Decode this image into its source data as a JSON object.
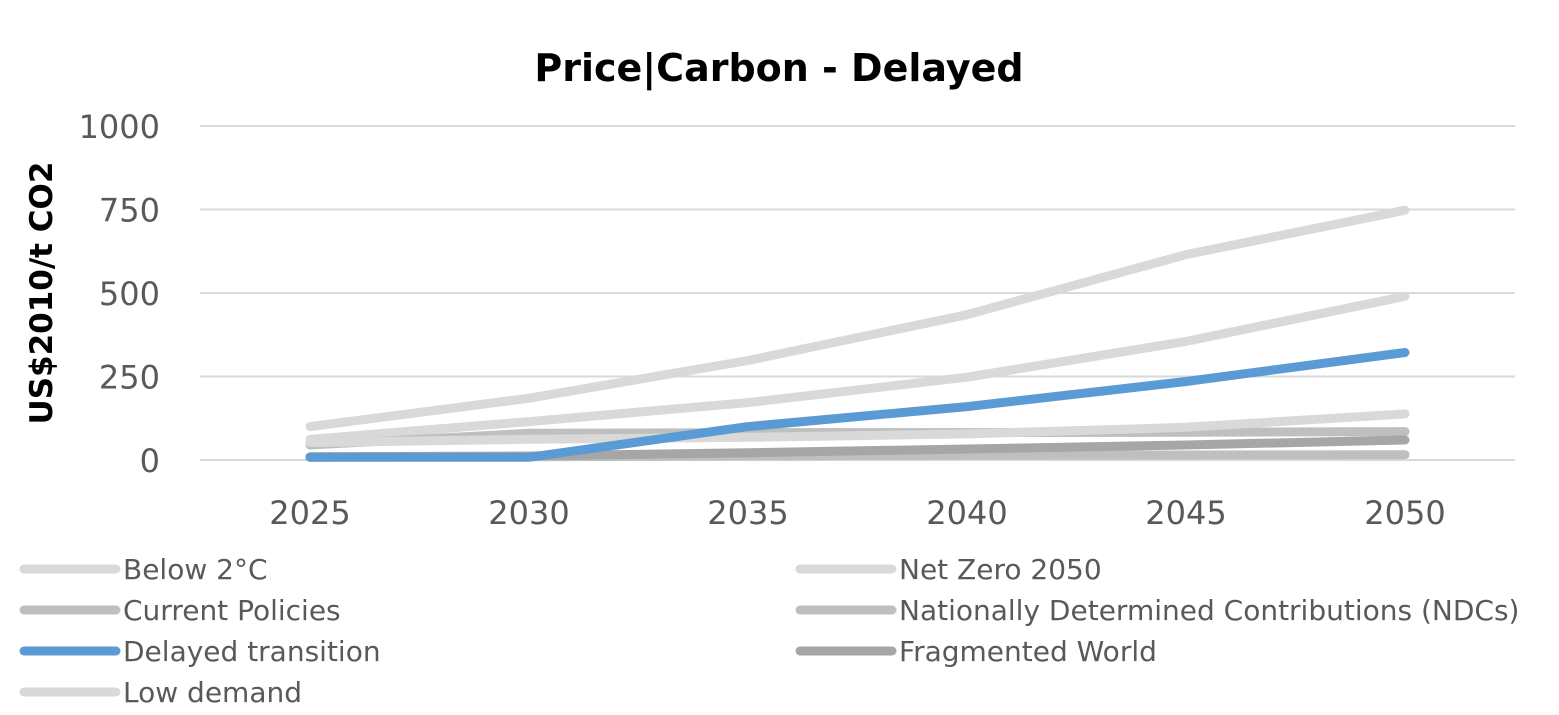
{
  "chart_data": {
    "type": "line",
    "title": "Price|Carbon - Delayed",
    "xlabel": "",
    "ylabel": "US$2010/t CO2",
    "x": [
      "2025",
      "2030",
      "2035",
      "2040",
      "2045",
      "2050"
    ],
    "ylim": [
      0,
      1000
    ],
    "yticks": [
      "0",
      "250",
      "500",
      "750",
      "1000"
    ],
    "grid": true,
    "legend_position": "bottom",
    "series": [
      {
        "name": "Below 2°C",
        "color": "#d9d9d9",
        "values": [
          62,
          115,
          172,
          248,
          355,
          490
        ]
      },
      {
        "name": "Net Zero 2050",
        "color": "#d9d9d9",
        "values": [
          100,
          185,
          298,
          435,
          615,
          748
        ]
      },
      {
        "name": "Current Policies",
        "color": "#bfbfbf",
        "values": [
          8,
          10,
          12,
          14,
          15,
          16
        ]
      },
      {
        "name": "Nationally Determined Contributions (NDCs)",
        "color": "#bfbfbf",
        "values": [
          45,
          80,
          82,
          82,
          83,
          85
        ]
      },
      {
        "name": "Delayed transition",
        "color": "#5b9bd5",
        "values": [
          8,
          8,
          100,
          160,
          235,
          322
        ]
      },
      {
        "name": "Fragmented World",
        "color": "#a6a6a6",
        "values": [
          10,
          12,
          22,
          33,
          45,
          60
        ]
      },
      {
        "name": "Low demand",
        "color": "#d9d9d9",
        "values": [
          52,
          62,
          68,
          78,
          98,
          138
        ]
      }
    ]
  }
}
